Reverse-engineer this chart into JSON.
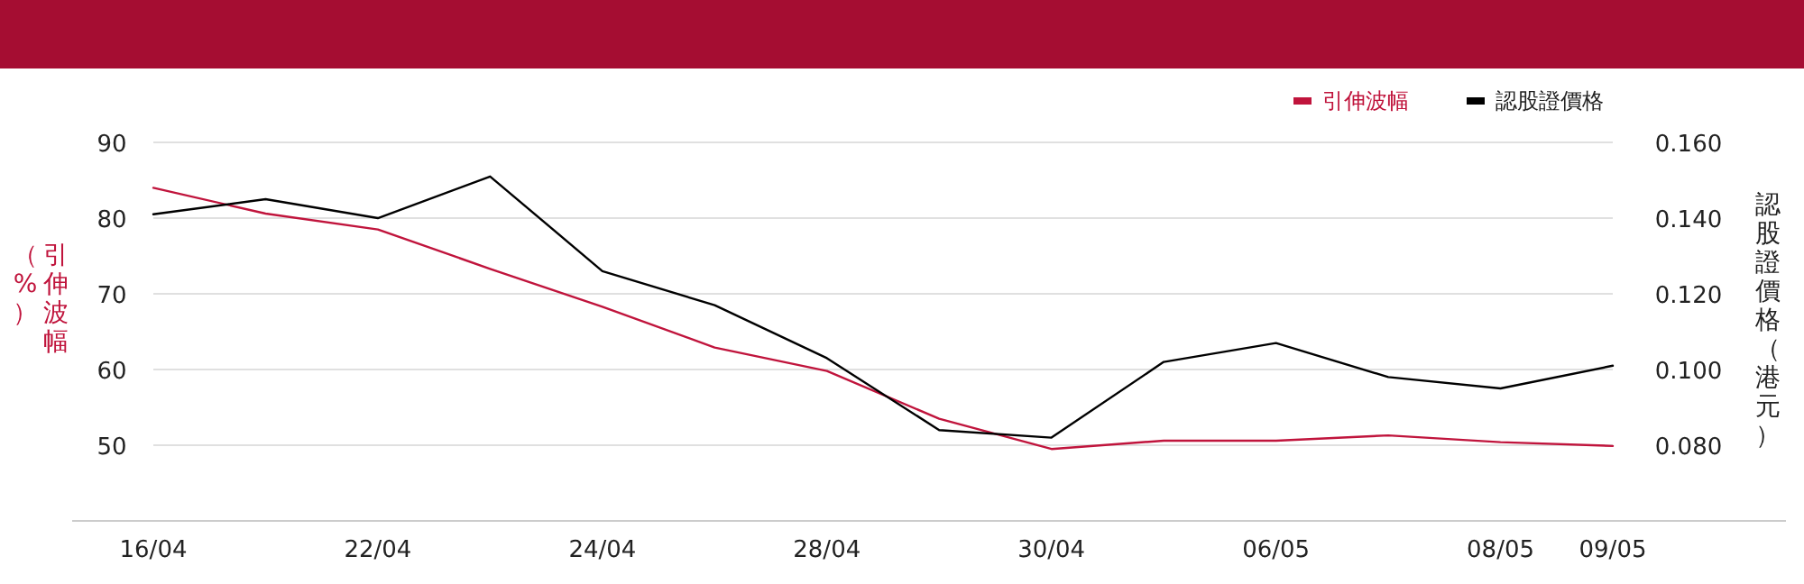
{
  "chart_data": {
    "type": "line",
    "categories": [
      "16/04",
      null,
      "22/04",
      null,
      "24/04",
      null,
      "28/04",
      null,
      "30/04",
      null,
      "06/05",
      null,
      "08/05",
      "09/05"
    ],
    "series": [
      {
        "name": "引伸波幅",
        "color": "#c0143c",
        "values": [
          84.0,
          80.6,
          78.5,
          73.3,
          68.3,
          62.9,
          59.8,
          53.5,
          49.5,
          50.6,
          50.6,
          51.3,
          50.4,
          49.9
        ]
      },
      {
        "name": "認股證價格",
        "color": "#000000",
        "axis": "y2",
        "values": [
          0.141,
          0.145,
          0.14,
          0.151,
          0.126,
          0.117,
          0.103,
          0.084,
          0.082,
          0.102,
          0.107,
          0.098,
          0.095,
          0.101
        ]
      }
    ],
    "ylabel": "引伸波幅（%）",
    "y2label": "認股證價格（港元）",
    "ylim": [
      40,
      90
    ],
    "yticks": [
      50,
      60,
      70,
      80,
      90
    ],
    "y2lim": [
      0.06,
      0.16
    ],
    "y2ticks": [
      {
        "value": 0.08,
        "label": "0.080"
      },
      {
        "value": 0.1,
        "label": "0.100"
      },
      {
        "value": 0.12,
        "label": "0.120"
      },
      {
        "value": 0.14,
        "label": "0.140"
      },
      {
        "value": 0.16,
        "label": "0.160"
      }
    ],
    "grid": "y",
    "legend": "top right",
    "marker": "none",
    "line_style": "solid"
  }
}
